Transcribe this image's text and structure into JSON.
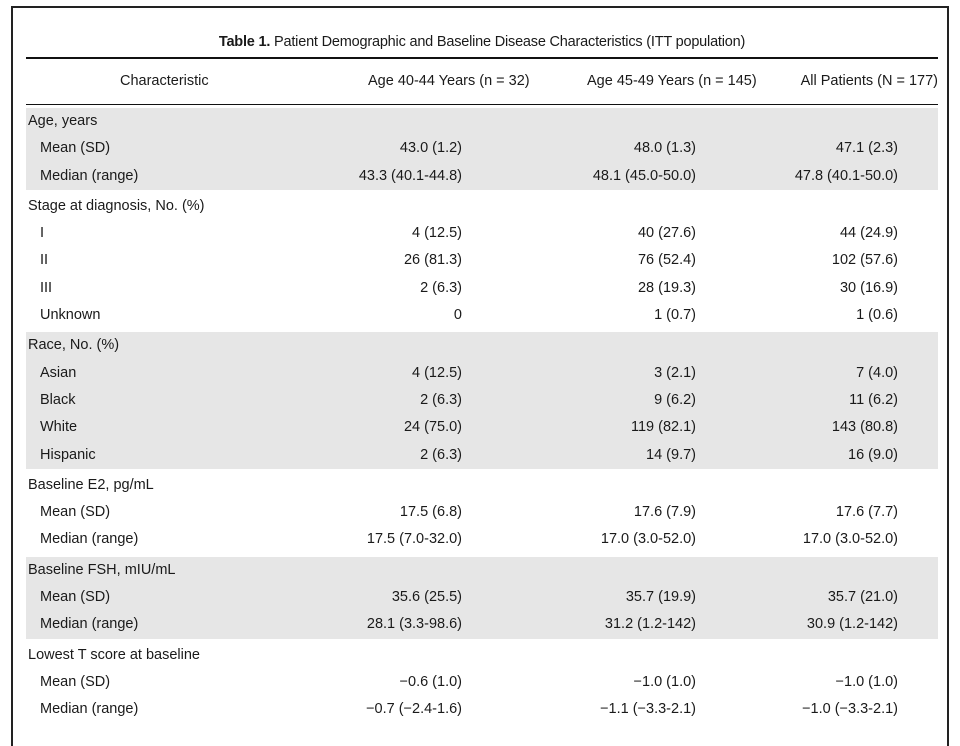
{
  "table": {
    "title_number": "Table 1.",
    "title_text": " Patient Demographic and Baseline Disease Characteristics (ITT population)",
    "headers": [
      "Characteristic",
      "Age 40-44 Years (n = 32)",
      "Age 45-49 Years (n = 145)",
      "All Patients (N = 177)"
    ],
    "sections": [
      {
        "label": "Age, years",
        "rows": [
          {
            "label": "Mean (SD)",
            "values": [
              "43.0 (1.2)",
              "48.0 (1.3)",
              "47.1 (2.3)"
            ]
          },
          {
            "label": "Median (range)",
            "values": [
              "43.3 (40.1-44.8)",
              "48.1 (45.0-50.0)",
              "47.8 (40.1-50.0)"
            ]
          }
        ]
      },
      {
        "label": "Stage at diagnosis, No. (%)",
        "rows": [
          {
            "label": "I",
            "values": [
              "4 (12.5)",
              "40 (27.6)",
              "44 (24.9)"
            ]
          },
          {
            "label": "II",
            "values": [
              "26 (81.3)",
              "76 (52.4)",
              "102 (57.6)"
            ]
          },
          {
            "label": "III",
            "values": [
              "2 (6.3)",
              "28 (19.3)",
              "30 (16.9)"
            ]
          },
          {
            "label": "Unknown",
            "values": [
              "0",
              "1 (0.7)",
              "1 (0.6)"
            ]
          }
        ]
      },
      {
        "label": "Race, No. (%)",
        "rows": [
          {
            "label": "Asian",
            "values": [
              "4 (12.5)",
              "3 (2.1)",
              "7 (4.0)"
            ]
          },
          {
            "label": "Black",
            "values": [
              "2 (6.3)",
              "9 (6.2)",
              "11 (6.2)"
            ]
          },
          {
            "label": "White",
            "values": [
              "24 (75.0)",
              "119 (82.1)",
              "143 (80.8)"
            ]
          },
          {
            "label": "Hispanic",
            "values": [
              "2 (6.3)",
              "14 (9.7)",
              "16 (9.0)"
            ]
          }
        ]
      },
      {
        "label": "Baseline E2, pg/mL",
        "rows": [
          {
            "label": "Mean (SD)",
            "values": [
              "17.5 (6.8)",
              "17.6 (7.9)",
              "17.6 (7.7)"
            ]
          },
          {
            "label": "Median (range)",
            "values": [
              "17.5 (7.0-32.0)",
              "17.0 (3.0-52.0)",
              "17.0 (3.0-52.0)"
            ]
          }
        ]
      },
      {
        "label": "Baseline FSH, mIU/mL",
        "rows": [
          {
            "label": "Mean (SD)",
            "values": [
              "35.6 (25.5)",
              "35.7 (19.9)",
              "35.7 (21.0)"
            ]
          },
          {
            "label": "Median (range)",
            "values": [
              "28.1 (3.3-98.6)",
              "31.2 (1.2-142)",
              "30.9 (1.2-142)"
            ]
          }
        ]
      },
      {
        "label": "Lowest T score at baseline",
        "rows": [
          {
            "label": "Mean (SD)",
            "values": [
              "−0.6 (1.0)",
              "−1.0 (1.0)",
              "−1.0 (1.0)"
            ]
          },
          {
            "label": "Median (range)",
            "values": [
              "−0.7 (−2.4-1.6)",
              "−1.1 (−3.3-2.1)",
              "−1.0 (−3.3-2.1)"
            ]
          }
        ]
      }
    ]
  }
}
